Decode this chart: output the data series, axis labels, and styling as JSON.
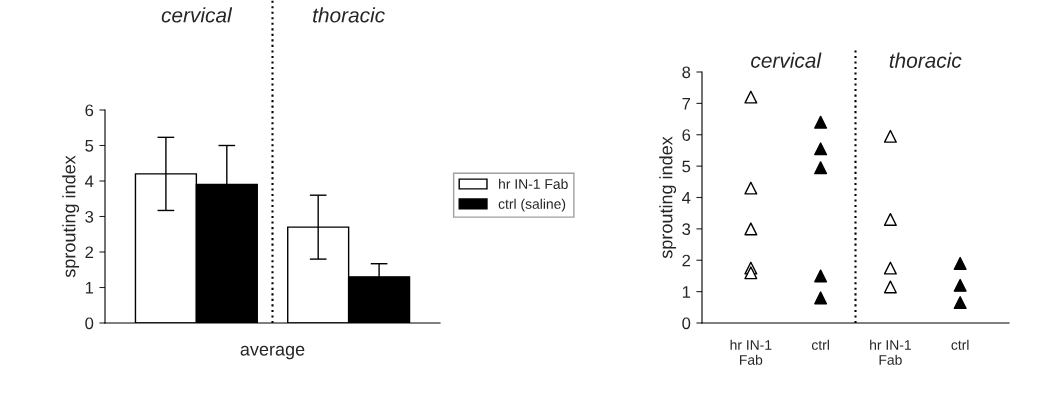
{
  "chart_data": [
    {
      "type": "bar",
      "categories": [
        "cervical",
        "thoracic"
      ],
      "xlabel": "average",
      "ylabel": "sprouting index",
      "ylim": [
        0,
        6
      ],
      "yticks": [
        0,
        1,
        2,
        3,
        4,
        5,
        6
      ],
      "legend": "right",
      "grid": false,
      "series": [
        {
          "name": "hr IN-1 Fab",
          "color": "#ffffff",
          "values": [
            4.2,
            2.7
          ],
          "errors": [
            1.03,
            0.9
          ]
        },
        {
          "name": "ctrl (saline)",
          "color": "#000000",
          "values": [
            3.9,
            1.3
          ],
          "errors": [
            1.1,
            0.37
          ]
        }
      ]
    },
    {
      "type": "scatter",
      "categories": [
        "hr IN-1\nFab",
        "ctrl",
        "hr IN-1\nFab",
        "ctrl"
      ],
      "ylabel": "sprouting index",
      "ylim": [
        0,
        8
      ],
      "yticks": [
        0,
        1,
        2,
        3,
        4,
        5,
        6,
        7,
        8
      ],
      "marker": "triangle",
      "grid": false,
      "annotations": [
        "cervical",
        "thoracic"
      ],
      "series": [
        {
          "colors": [
            "#ffffff",
            "#000000",
            "#ffffff",
            "#000000"
          ],
          "values": [
            7.2,
            6.4,
            5.95,
            1.9
          ]
        },
        {
          "colors": [
            "#ffffff",
            "#000000",
            "#ffffff",
            "#000000"
          ],
          "values": [
            4.3,
            5.55,
            3.3,
            1.2
          ]
        },
        {
          "colors": [
            "#ffffff",
            "#000000",
            "#ffffff",
            "#000000"
          ],
          "values": [
            3.0,
            4.95,
            1.75,
            0.65
          ]
        },
        {
          "colors": [
            "#ffffff",
            "#000000",
            "#ffffff",
            "#000000"
          ],
          "values": [
            1.75,
            1.5,
            1.15,
            null
          ]
        },
        {
          "colors": [
            "#ffffff",
            "#000000",
            "#ffffff",
            "#000000"
          ],
          "values": [
            1.6,
            0.8,
            null,
            null
          ]
        }
      ]
    }
  ]
}
